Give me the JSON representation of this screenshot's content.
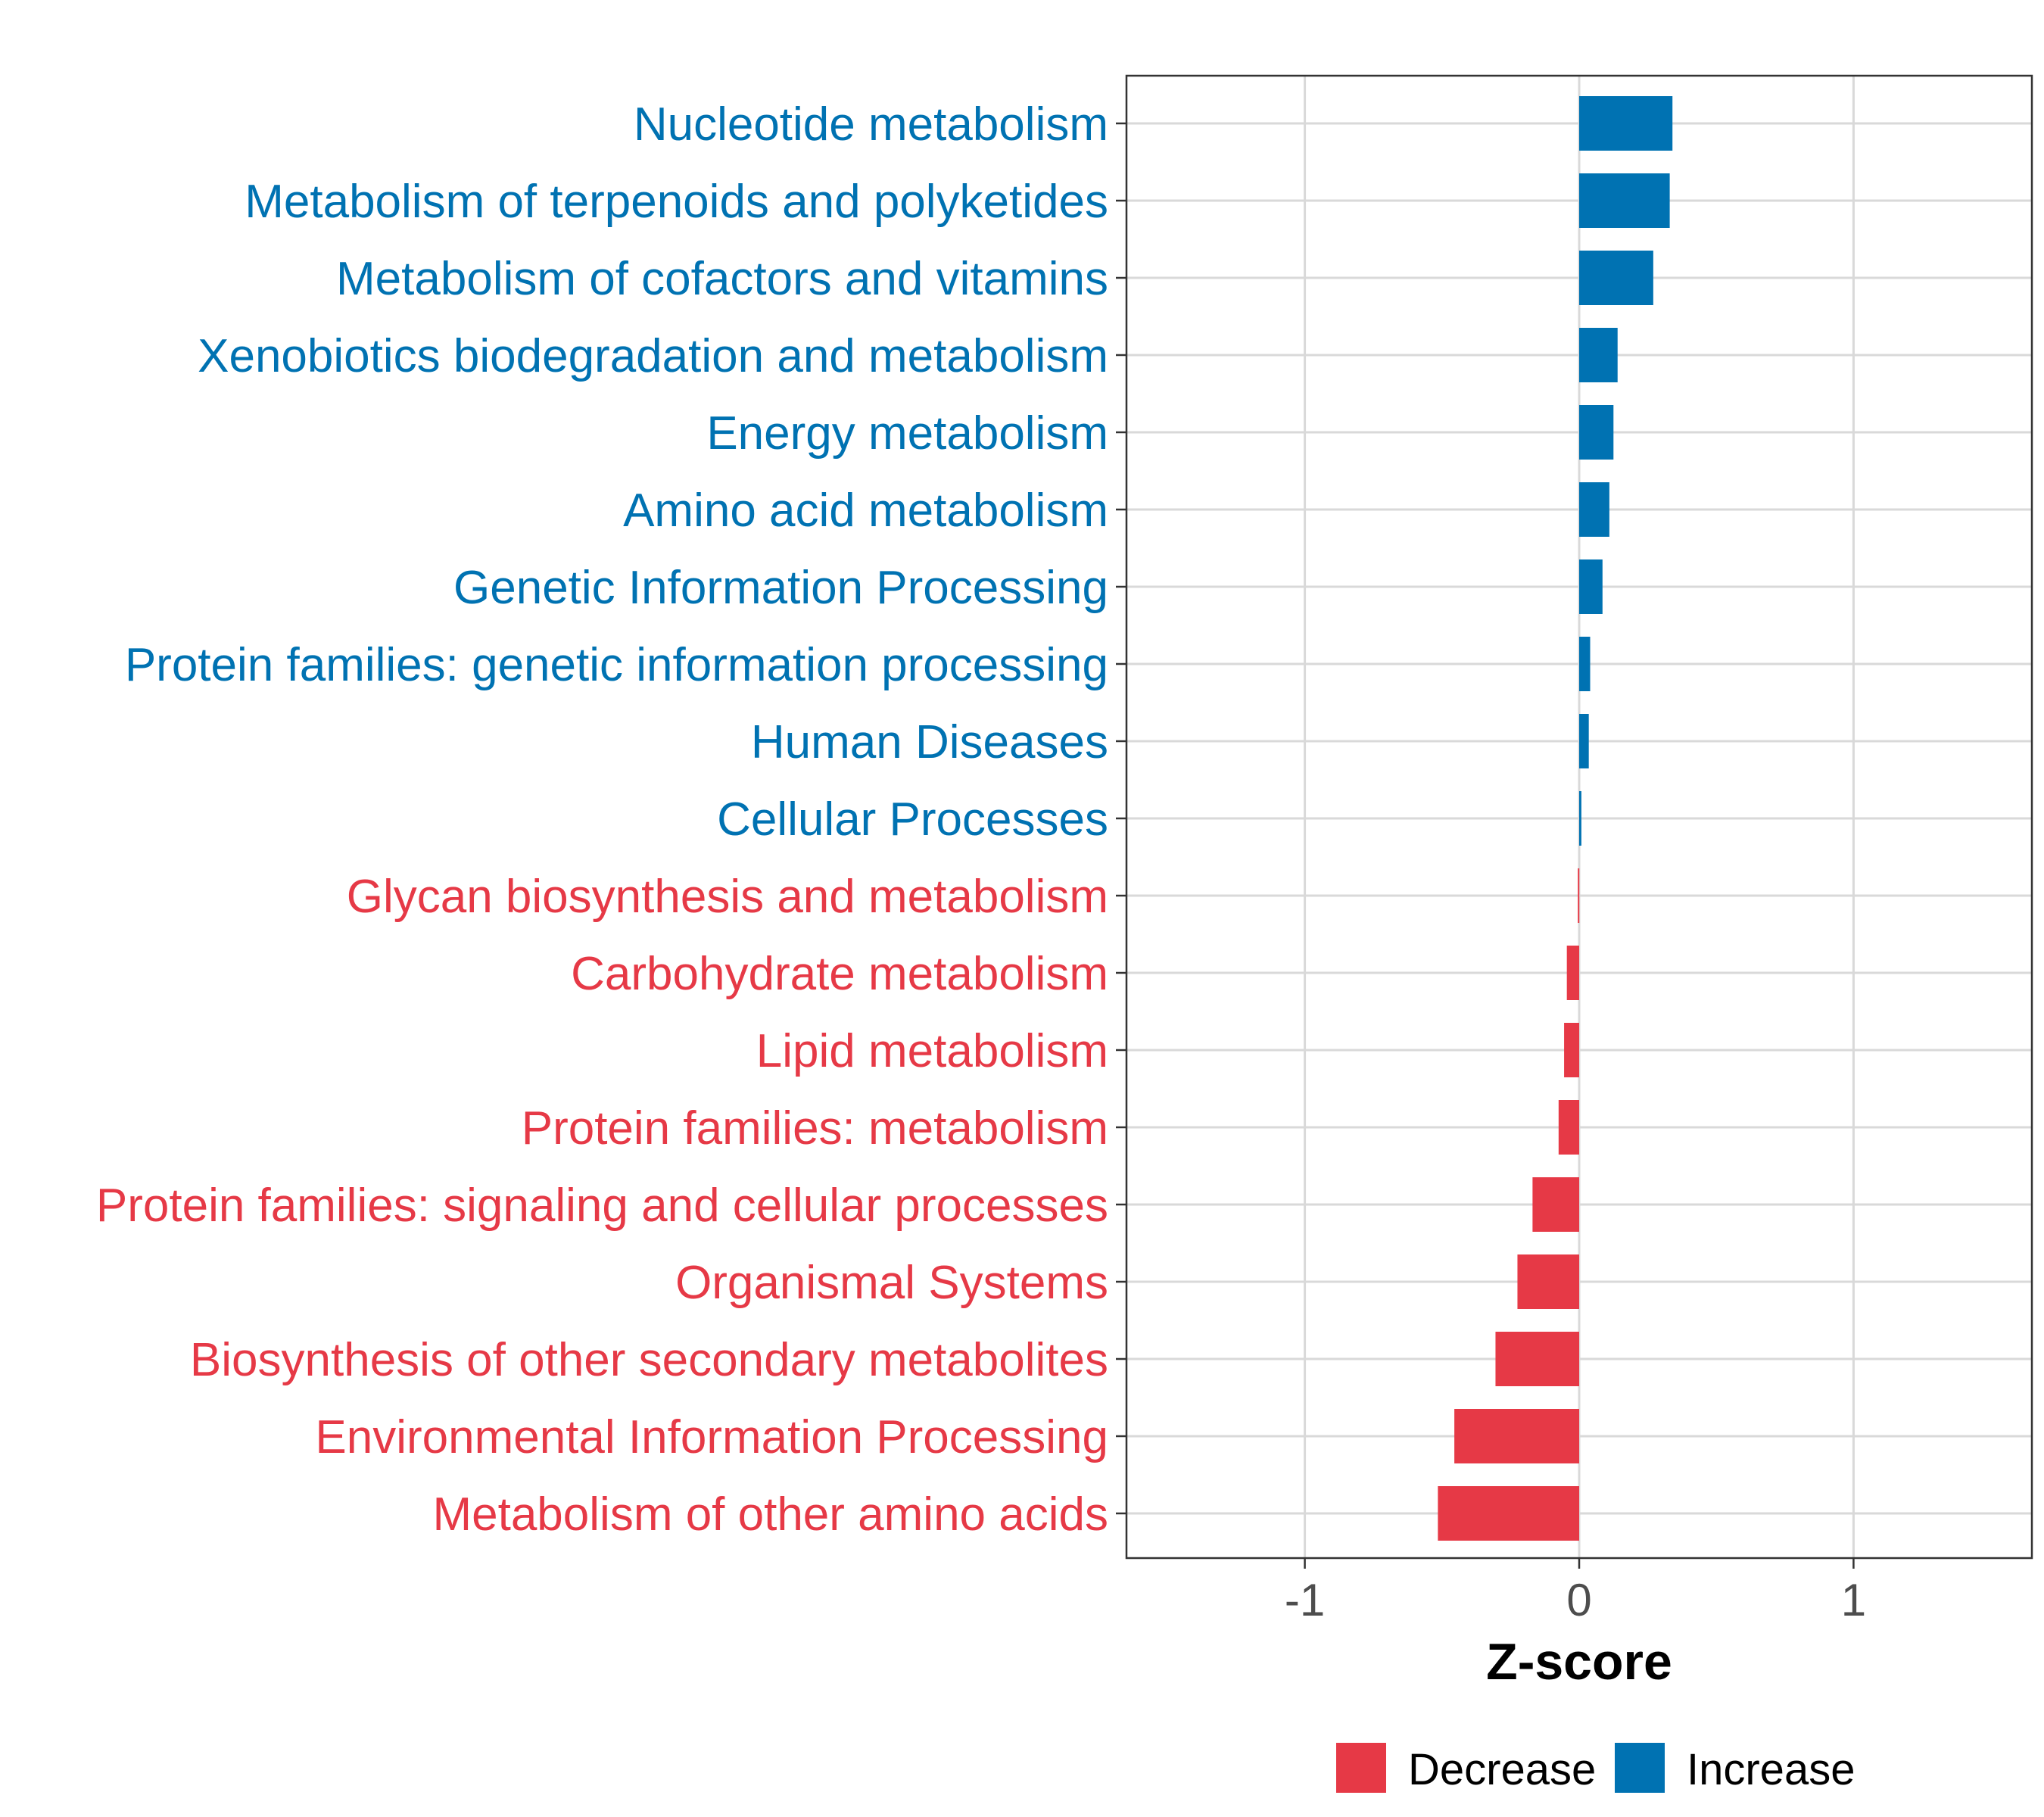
{
  "chart_data": {
    "type": "bar",
    "orientation": "horizontal",
    "title": "",
    "xlabel": "Z-score",
    "ylabel": "",
    "xlim": [
      -1.65,
      1.65
    ],
    "xticks": [
      -1,
      0,
      1
    ],
    "xtick_labels": [
      "-1",
      "0",
      "1"
    ],
    "grid": true,
    "legend_position": "bottom",
    "categories": [
      "Nucleotide metabolism",
      "Metabolism of terpenoids and polyketides",
      "Metabolism of cofactors and vitamins",
      "Xenobiotics biodegradation and metabolism",
      "Energy metabolism",
      "Amino acid metabolism",
      "Genetic Information Processing",
      "Protein families: genetic information processing",
      "Human Diseases",
      "Cellular Processes",
      "Glycan biosynthesis and metabolism",
      "Carbohydrate metabolism",
      "Lipid metabolism",
      "Protein families: metabolism",
      "Protein families: signaling and cellular processes",
      "Organismal Systems",
      "Biosynthesis of other secondary metabolites",
      "Environmental Information Processing",
      "Metabolism of other amino acids"
    ],
    "values": [
      0.34,
      0.33,
      0.27,
      0.14,
      0.125,
      0.11,
      0.085,
      0.04,
      0.035,
      0.008,
      -0.005,
      -0.045,
      -0.055,
      -0.075,
      -0.17,
      -0.225,
      -0.305,
      -0.455,
      -0.515
    ],
    "groups": [
      "Increase",
      "Increase",
      "Increase",
      "Increase",
      "Increase",
      "Increase",
      "Increase",
      "Increase",
      "Increase",
      "Increase",
      "Decrease",
      "Decrease",
      "Decrease",
      "Decrease",
      "Decrease",
      "Decrease",
      "Decrease",
      "Decrease",
      "Decrease"
    ],
    "legend": [
      {
        "label": "Decrease",
        "color": "#E63946"
      },
      {
        "label": "Increase",
        "color": "#0072B2"
      }
    ],
    "colors": {
      "Decrease": "#E63946",
      "Increase": "#0072B2"
    }
  }
}
